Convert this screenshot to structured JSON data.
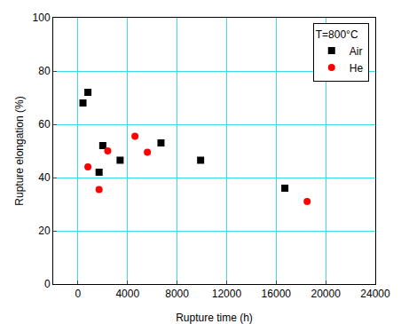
{
  "chart_data": {
    "type": "scatter",
    "legend_title": "T=800°C",
    "x_label": "Rupture time (h)",
    "y_label": "Rupture elongation (%)",
    "series": [
      {
        "name": "Air",
        "color": "#000000",
        "marker": "square",
        "x": [
          400,
          800,
          1700,
          2000,
          3400,
          6700,
          9900,
          16700
        ],
        "values": [
          68,
          72,
          42,
          52,
          46.5,
          53,
          46.5,
          36
        ]
      },
      {
        "name": "He",
        "color": "#ff0000",
        "marker": "circle",
        "x": [
          800,
          1700,
          2400,
          4600,
          5600,
          18500
        ],
        "values": [
          44,
          35.5,
          50,
          55.5,
          49.5,
          31
        ]
      }
    ],
    "xlim": [
      -2000,
      24000
    ],
    "xticks": [
      0,
      4000,
      8000,
      12000,
      16000,
      20000,
      24000
    ],
    "ylim": [
      0,
      100
    ],
    "yticks": [
      0,
      20,
      40,
      60,
      80,
      100
    ],
    "grid": true,
    "legend": "upper right"
  }
}
